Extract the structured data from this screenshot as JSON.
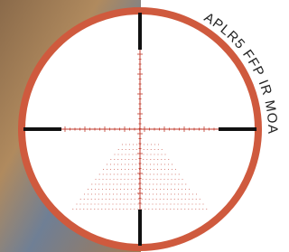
{
  "reticle": {
    "label": "APLR5 FFP IR MOA"
  }
}
